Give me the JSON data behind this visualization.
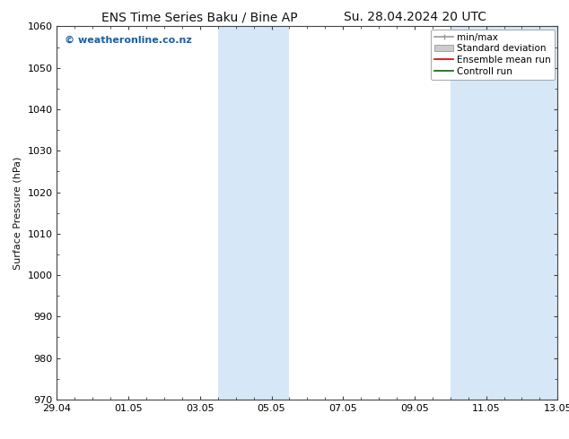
{
  "title_left": "ENS Time Series Baku / Bine AP",
  "title_right": "Su. 28.04.2024 20 UTC",
  "ylabel": "Surface Pressure (hPa)",
  "ylim": [
    970,
    1060
  ],
  "yticks": [
    970,
    980,
    990,
    1000,
    1010,
    1020,
    1030,
    1040,
    1050,
    1060
  ],
  "xtick_labels": [
    "29.04",
    "01.05",
    "03.05",
    "05.05",
    "07.05",
    "09.05",
    "11.05",
    "13.05"
  ],
  "xtick_positions": [
    0,
    2,
    4,
    6,
    8,
    10,
    12,
    14
  ],
  "xlim": [
    0,
    14
  ],
  "shaded_regions": [
    {
      "x_start": 4.5,
      "x_end": 5.5
    },
    {
      "x_start": 5.5,
      "x_end": 6.5
    },
    {
      "x_start": 11.0,
      "x_end": 12.0
    },
    {
      "x_start": 12.0,
      "x_end": 14.0
    }
  ],
  "shaded_color": "#d6e8f7",
  "watermark_text": "© weatheronline.co.nz",
  "watermark_color": "#1a5fa8",
  "bg_color": "#ffffff",
  "plot_bg_color": "#ffffff",
  "tick_color": "#444444",
  "spine_color": "#444444",
  "font_color": "#111111",
  "title_fontsize": 10,
  "axis_label_fontsize": 8,
  "tick_fontsize": 8,
  "legend_fontsize": 7.5,
  "watermark_fontsize": 8,
  "minmax_color": "#999999",
  "std_color": "#cccccc",
  "ensemble_color": "#cc0000",
  "control_color": "#006600"
}
